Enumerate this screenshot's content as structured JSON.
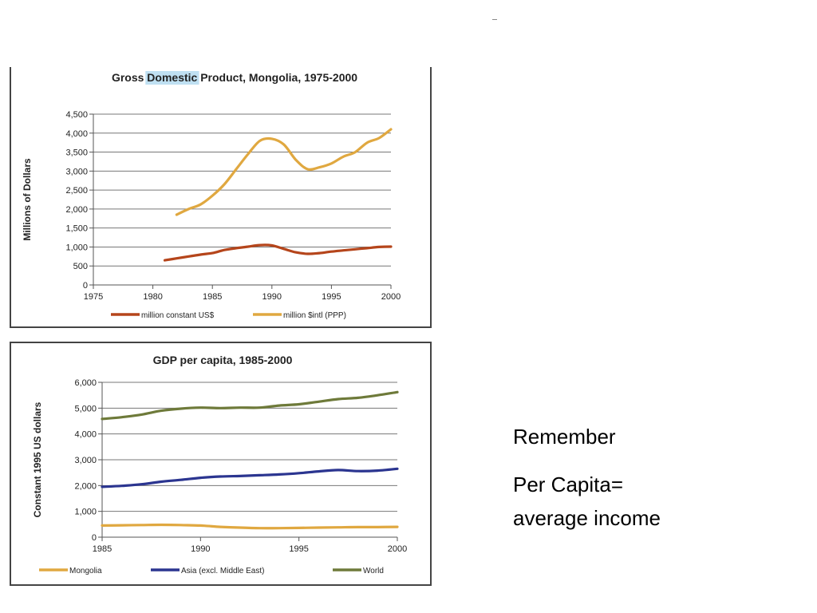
{
  "slide": {
    "note_title": "Remember",
    "note_line1": "Per Capita=",
    "note_line2": "average income"
  },
  "chart_data": [
    {
      "type": "line",
      "title_parts": [
        "Gross ",
        "Domestic",
        " Product, Mongolia, 1975-2000"
      ],
      "title": "Gross Domestic Product, Mongolia, 1975-2000",
      "highlighted_word": "Domestic",
      "xlabel": "",
      "ylabel": "Millions of Dollars",
      "xlim": [
        1975,
        2000
      ],
      "ylim": [
        0,
        4500
      ],
      "x_ticks": [
        1975,
        1980,
        1985,
        1990,
        1995,
        2000
      ],
      "y_ticks": [
        0,
        500,
        1000,
        1500,
        2000,
        2500,
        3000,
        3500,
        4000,
        4500
      ],
      "y_tick_labels": [
        "0",
        "500",
        "1,000",
        "1,500",
        "2,000",
        "2,500",
        "3,000",
        "3,500",
        "4,000",
        "4,500"
      ],
      "grid": "horizontal",
      "legend_position": "bottom",
      "series": [
        {
          "name": "million constant US$",
          "color": "#b5451b",
          "points": [
            [
              1981,
              650
            ],
            [
              1982,
              700
            ],
            [
              1983,
              750
            ],
            [
              1984,
              800
            ],
            [
              1985,
              840
            ],
            [
              1986,
              920
            ],
            [
              1987,
              970
            ],
            [
              1988,
              1010
            ],
            [
              1989,
              1050
            ],
            [
              1990,
              1040
            ],
            [
              1991,
              950
            ],
            [
              1992,
              860
            ],
            [
              1993,
              820
            ],
            [
              1994,
              840
            ],
            [
              1995,
              880
            ],
            [
              1996,
              910
            ],
            [
              1997,
              940
            ],
            [
              1998,
              970
            ],
            [
              1999,
              1000
            ],
            [
              2000,
              1010
            ]
          ]
        },
        {
          "name": "million $intl (PPP)",
          "color": "#e0a840",
          "points": [
            [
              1982,
              1850
            ],
            [
              1983,
              2000
            ],
            [
              1984,
              2120
            ],
            [
              1985,
              2350
            ],
            [
              1986,
              2650
            ],
            [
              1987,
              3050
            ],
            [
              1988,
              3450
            ],
            [
              1989,
              3800
            ],
            [
              1990,
              3850
            ],
            [
              1991,
              3700
            ],
            [
              1992,
              3300
            ],
            [
              1993,
              3050
            ],
            [
              1994,
              3100
            ],
            [
              1995,
              3200
            ],
            [
              1996,
              3380
            ],
            [
              1997,
              3500
            ],
            [
              1998,
              3750
            ],
            [
              1999,
              3870
            ],
            [
              2000,
              4100
            ]
          ]
        }
      ]
    },
    {
      "type": "line",
      "title": "GDP per capita, 1985-2000",
      "xlabel": "",
      "ylabel": "Constant 1995 US dollars",
      "xlim": [
        1985,
        2000
      ],
      "ylim": [
        0,
        6000
      ],
      "x_ticks": [
        1985,
        1990,
        1995,
        2000
      ],
      "y_ticks": [
        0,
        1000,
        2000,
        3000,
        4000,
        5000,
        6000
      ],
      "y_tick_labels": [
        "0",
        "1,000",
        "2,000",
        "3,000",
        "4,000",
        "5,000",
        "6,000"
      ],
      "grid": "horizontal",
      "legend_position": "bottom",
      "series": [
        {
          "name": "Mongolia",
          "color": "#e0a840",
          "points": [
            [
              1985,
              450
            ],
            [
              1986,
              460
            ],
            [
              1987,
              470
            ],
            [
              1988,
              480
            ],
            [
              1989,
              470
            ],
            [
              1990,
              450
            ],
            [
              1991,
              400
            ],
            [
              1992,
              370
            ],
            [
              1993,
              350
            ],
            [
              1994,
              350
            ],
            [
              1995,
              360
            ],
            [
              1996,
              370
            ],
            [
              1997,
              380
            ],
            [
              1998,
              390
            ],
            [
              1999,
              390
            ],
            [
              2000,
              400
            ]
          ]
        },
        {
          "name": "Asia (excl. Middle East)",
          "color": "#2b3590",
          "points": [
            [
              1985,
              1950
            ],
            [
              1986,
              1990
            ],
            [
              1987,
              2050
            ],
            [
              1988,
              2150
            ],
            [
              1989,
              2220
            ],
            [
              1990,
              2300
            ],
            [
              1991,
              2350
            ],
            [
              1992,
              2370
            ],
            [
              1993,
              2400
            ],
            [
              1994,
              2430
            ],
            [
              1995,
              2480
            ],
            [
              1996,
              2550
            ],
            [
              1997,
              2600
            ],
            [
              1998,
              2560
            ],
            [
              1999,
              2580
            ],
            [
              2000,
              2650
            ]
          ]
        },
        {
          "name": "World",
          "color": "#6e7a3a",
          "points": [
            [
              1985,
              4580
            ],
            [
              1986,
              4650
            ],
            [
              1987,
              4750
            ],
            [
              1988,
              4900
            ],
            [
              1989,
              4980
            ],
            [
              1990,
              5020
            ],
            [
              1991,
              5000
            ],
            [
              1992,
              5020
            ],
            [
              1993,
              5020
            ],
            [
              1994,
              5100
            ],
            [
              1995,
              5150
            ],
            [
              1996,
              5250
            ],
            [
              1997,
              5350
            ],
            [
              1998,
              5400
            ],
            [
              1999,
              5500
            ],
            [
              2000,
              5620
            ]
          ]
        }
      ]
    }
  ]
}
